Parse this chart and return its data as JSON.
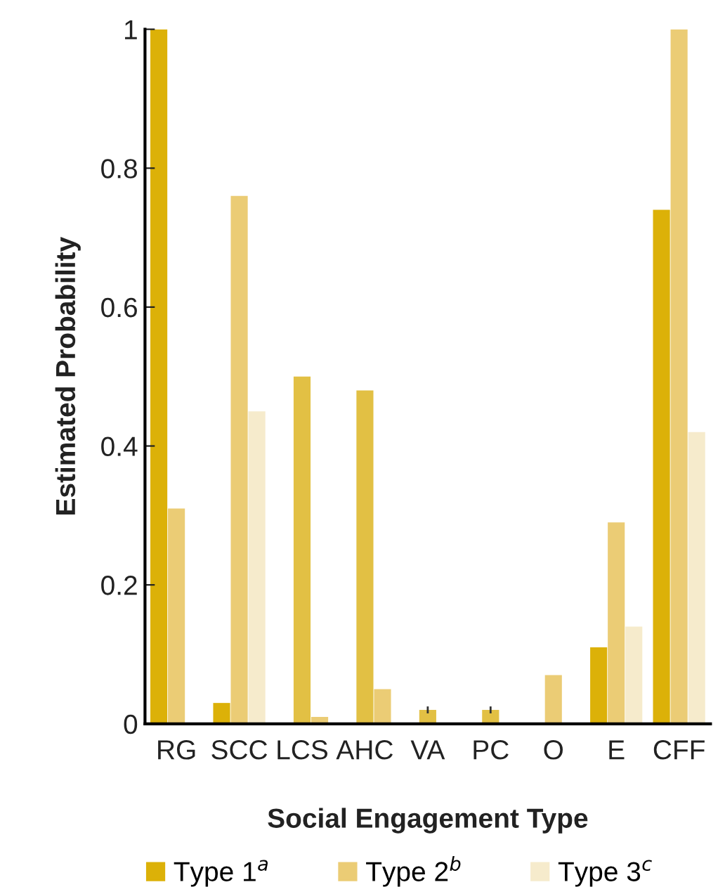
{
  "chart_data": {
    "type": "bar",
    "xlabel": "Social Engagement Type",
    "ylabel": "Estimated Probability",
    "categories": [
      "RG",
      "SCC",
      "LCS",
      "AHC",
      "VA",
      "PC",
      "O",
      "E",
      "CFF"
    ],
    "series": [
      {
        "name": "Type 1$^{a}$",
        "color": "#dcb108",
        "colors": [
          "#dcb108",
          "#dcb108",
          "#dcb108",
          "#dcb108",
          "#dcb108",
          "#dcb108",
          "#dcb108",
          "#dcb108",
          "#dcb108"
        ],
        "values": [
          1.0,
          0.03,
          0.0,
          0.0,
          0.0,
          0.0,
          0.0,
          0.11,
          0.74
        ]
      },
      {
        "name": "Type 2$^{b}$",
        "color": "#ebcc75",
        "colors": [
          "#ebcc75",
          "#ebcc75",
          "#e2c044",
          "#e2c044",
          "#e2c044",
          "#e2c044",
          "#ebcc75",
          "#ebcc75",
          "#ebcc75"
        ],
        "values": [
          0.31,
          0.76,
          0.5,
          0.48,
          0.02,
          0.02,
          0.07,
          0.29,
          1.0
        ],
        "errors": [
          null,
          null,
          null,
          null,
          0.005,
          0.005,
          null,
          null,
          null
        ]
      },
      {
        "name": "Type 3$^{c}$",
        "color": "#f6ebcc",
        "colors": [
          "#ebcc75",
          "#f6ebcc",
          "#ebcc75",
          "#ebcc75",
          "#ebcc75",
          "#ebcc75",
          "#ebcc75",
          "#f6ebcc",
          "#f6ebcc"
        ],
        "values": [
          0.0,
          0.45,
          0.01,
          0.05,
          0.0,
          0.0,
          0.0,
          0.14,
          0.42
        ]
      }
    ],
    "ylim": [
      0,
      1
    ],
    "yticks": [
      0,
      {
        "value": 0.2,
        "label": "0.2"
      },
      {
        "value": 0.4,
        "label": "0.4"
      },
      {
        "value": 0.6,
        "label": "0.6"
      },
      {
        "value": 0.8,
        "label": "0.8"
      },
      1
    ],
    "grid": false,
    "legend": "bottom"
  }
}
